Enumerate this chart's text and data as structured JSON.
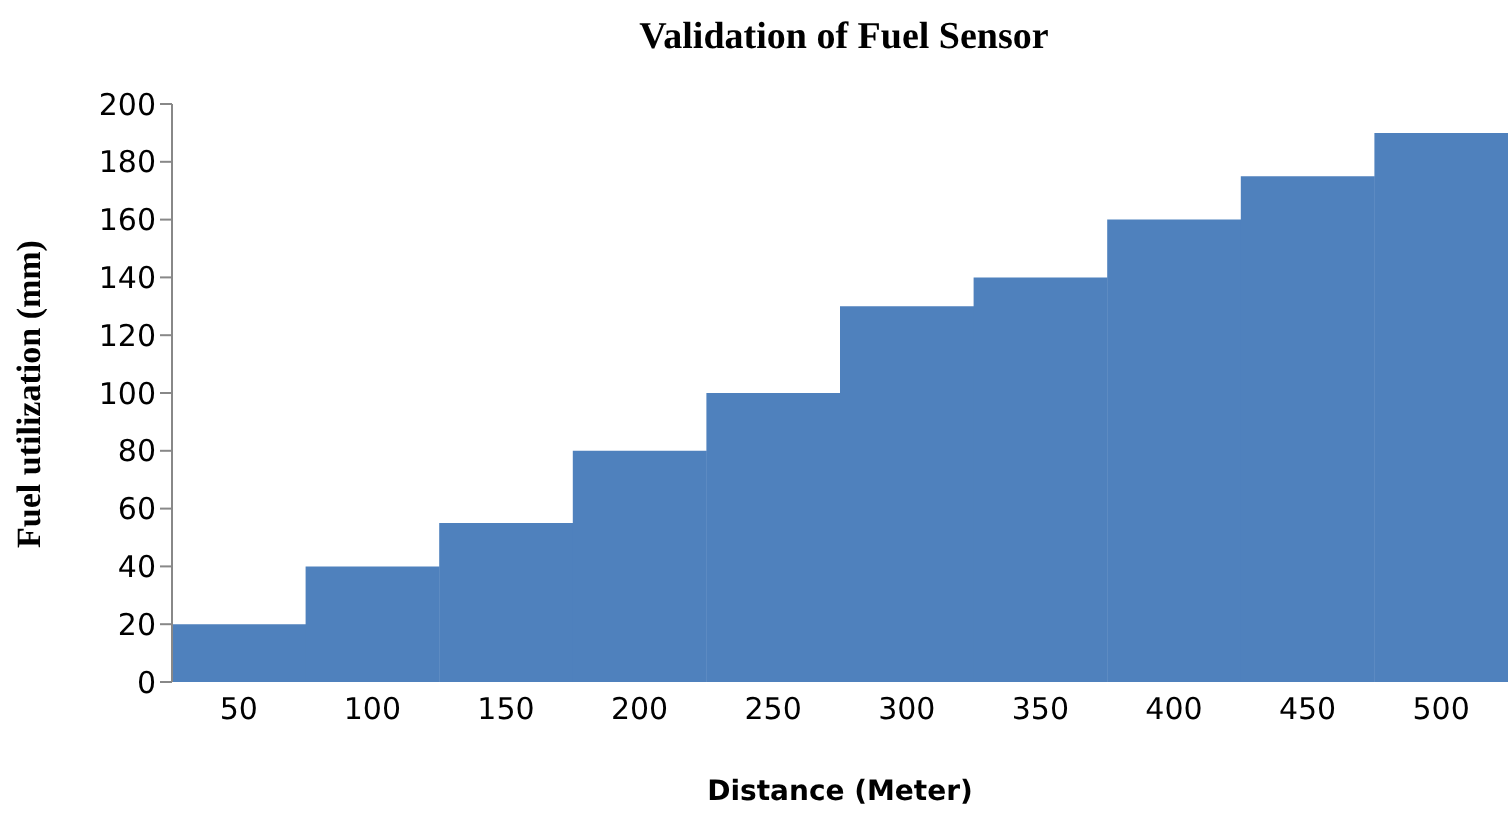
{
  "chart_data": {
    "type": "bar",
    "title": "Validation of Fuel Sensor",
    "xlabel": "Distance (Meter)",
    "ylabel": "Fuel utilization (mm)",
    "categories": [
      "50",
      "100",
      "150",
      "200",
      "250",
      "300",
      "350",
      "400",
      "450",
      "500"
    ],
    "values": [
      20,
      40,
      55,
      80,
      100,
      130,
      140,
      160,
      175,
      190
    ],
    "color": "#4f81bd",
    "ylim": [
      0,
      200
    ],
    "yticks": [
      0,
      20,
      40,
      60,
      80,
      100,
      120,
      140,
      160,
      180,
      200
    ],
    "grid": false,
    "legend": false
  }
}
